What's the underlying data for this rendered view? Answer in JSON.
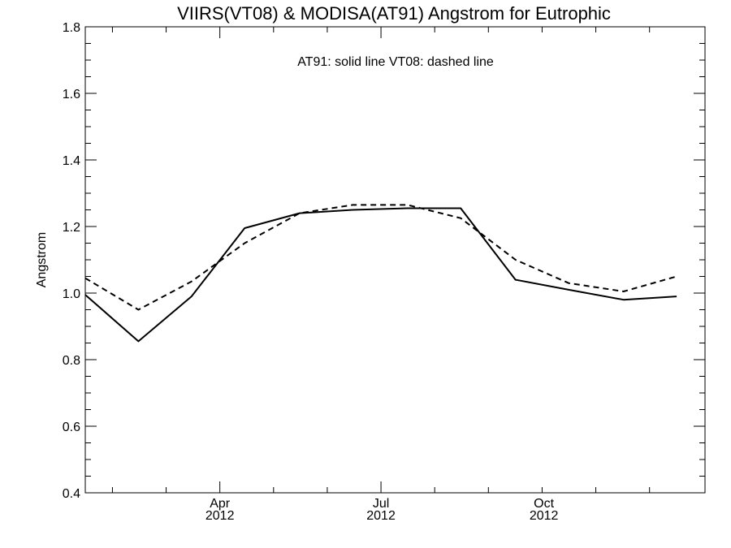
{
  "chart_data": {
    "type": "line",
    "title": "VIIRS(VT08) & MODISA(AT91)  Angstrom for Eutrophic",
    "annotation": "AT91: solid line   VT08: dashed line",
    "xlabel": "",
    "ylabel": "Angstrom",
    "ylim": [
      0.4,
      1.8
    ],
    "xlim": [
      "2012-01-16",
      "2012-12-31"
    ],
    "yticks": [
      "0.4",
      "0.6",
      "0.8",
      "1.0",
      "1.2",
      "1.4",
      "1.6",
      "1.8"
    ],
    "xticks": [
      {
        "date": "2012-04-01",
        "month": "Apr",
        "year": "2012"
      },
      {
        "date": "2012-07-01",
        "month": "Jul",
        "year": "2012"
      },
      {
        "date": "2012-10-01",
        "month": "Oct",
        "year": "2012"
      }
    ],
    "grid": false,
    "series": [
      {
        "name": "AT91",
        "style": "solid",
        "color": "#000000",
        "x": [
          "2012-01-16",
          "2012-02-15",
          "2012-03-16",
          "2012-04-15",
          "2012-05-16",
          "2012-06-15",
          "2012-07-16",
          "2012-08-15",
          "2012-09-15",
          "2012-10-15",
          "2012-11-15",
          "2012-12-15"
        ],
        "y": [
          0.995,
          0.855,
          0.99,
          1.195,
          1.24,
          1.25,
          1.255,
          1.255,
          1.04,
          1.01,
          0.98,
          0.99
        ]
      },
      {
        "name": "VT08",
        "style": "dashed",
        "color": "#000000",
        "x": [
          "2012-01-16",
          "2012-02-15",
          "2012-03-16",
          "2012-04-15",
          "2012-05-16",
          "2012-06-15",
          "2012-07-16",
          "2012-08-15",
          "2012-09-15",
          "2012-10-15",
          "2012-11-15",
          "2012-12-15"
        ],
        "y": [
          1.045,
          0.95,
          1.035,
          1.15,
          1.24,
          1.265,
          1.265,
          1.225,
          1.1,
          1.03,
          1.005,
          1.05
        ]
      }
    ]
  }
}
